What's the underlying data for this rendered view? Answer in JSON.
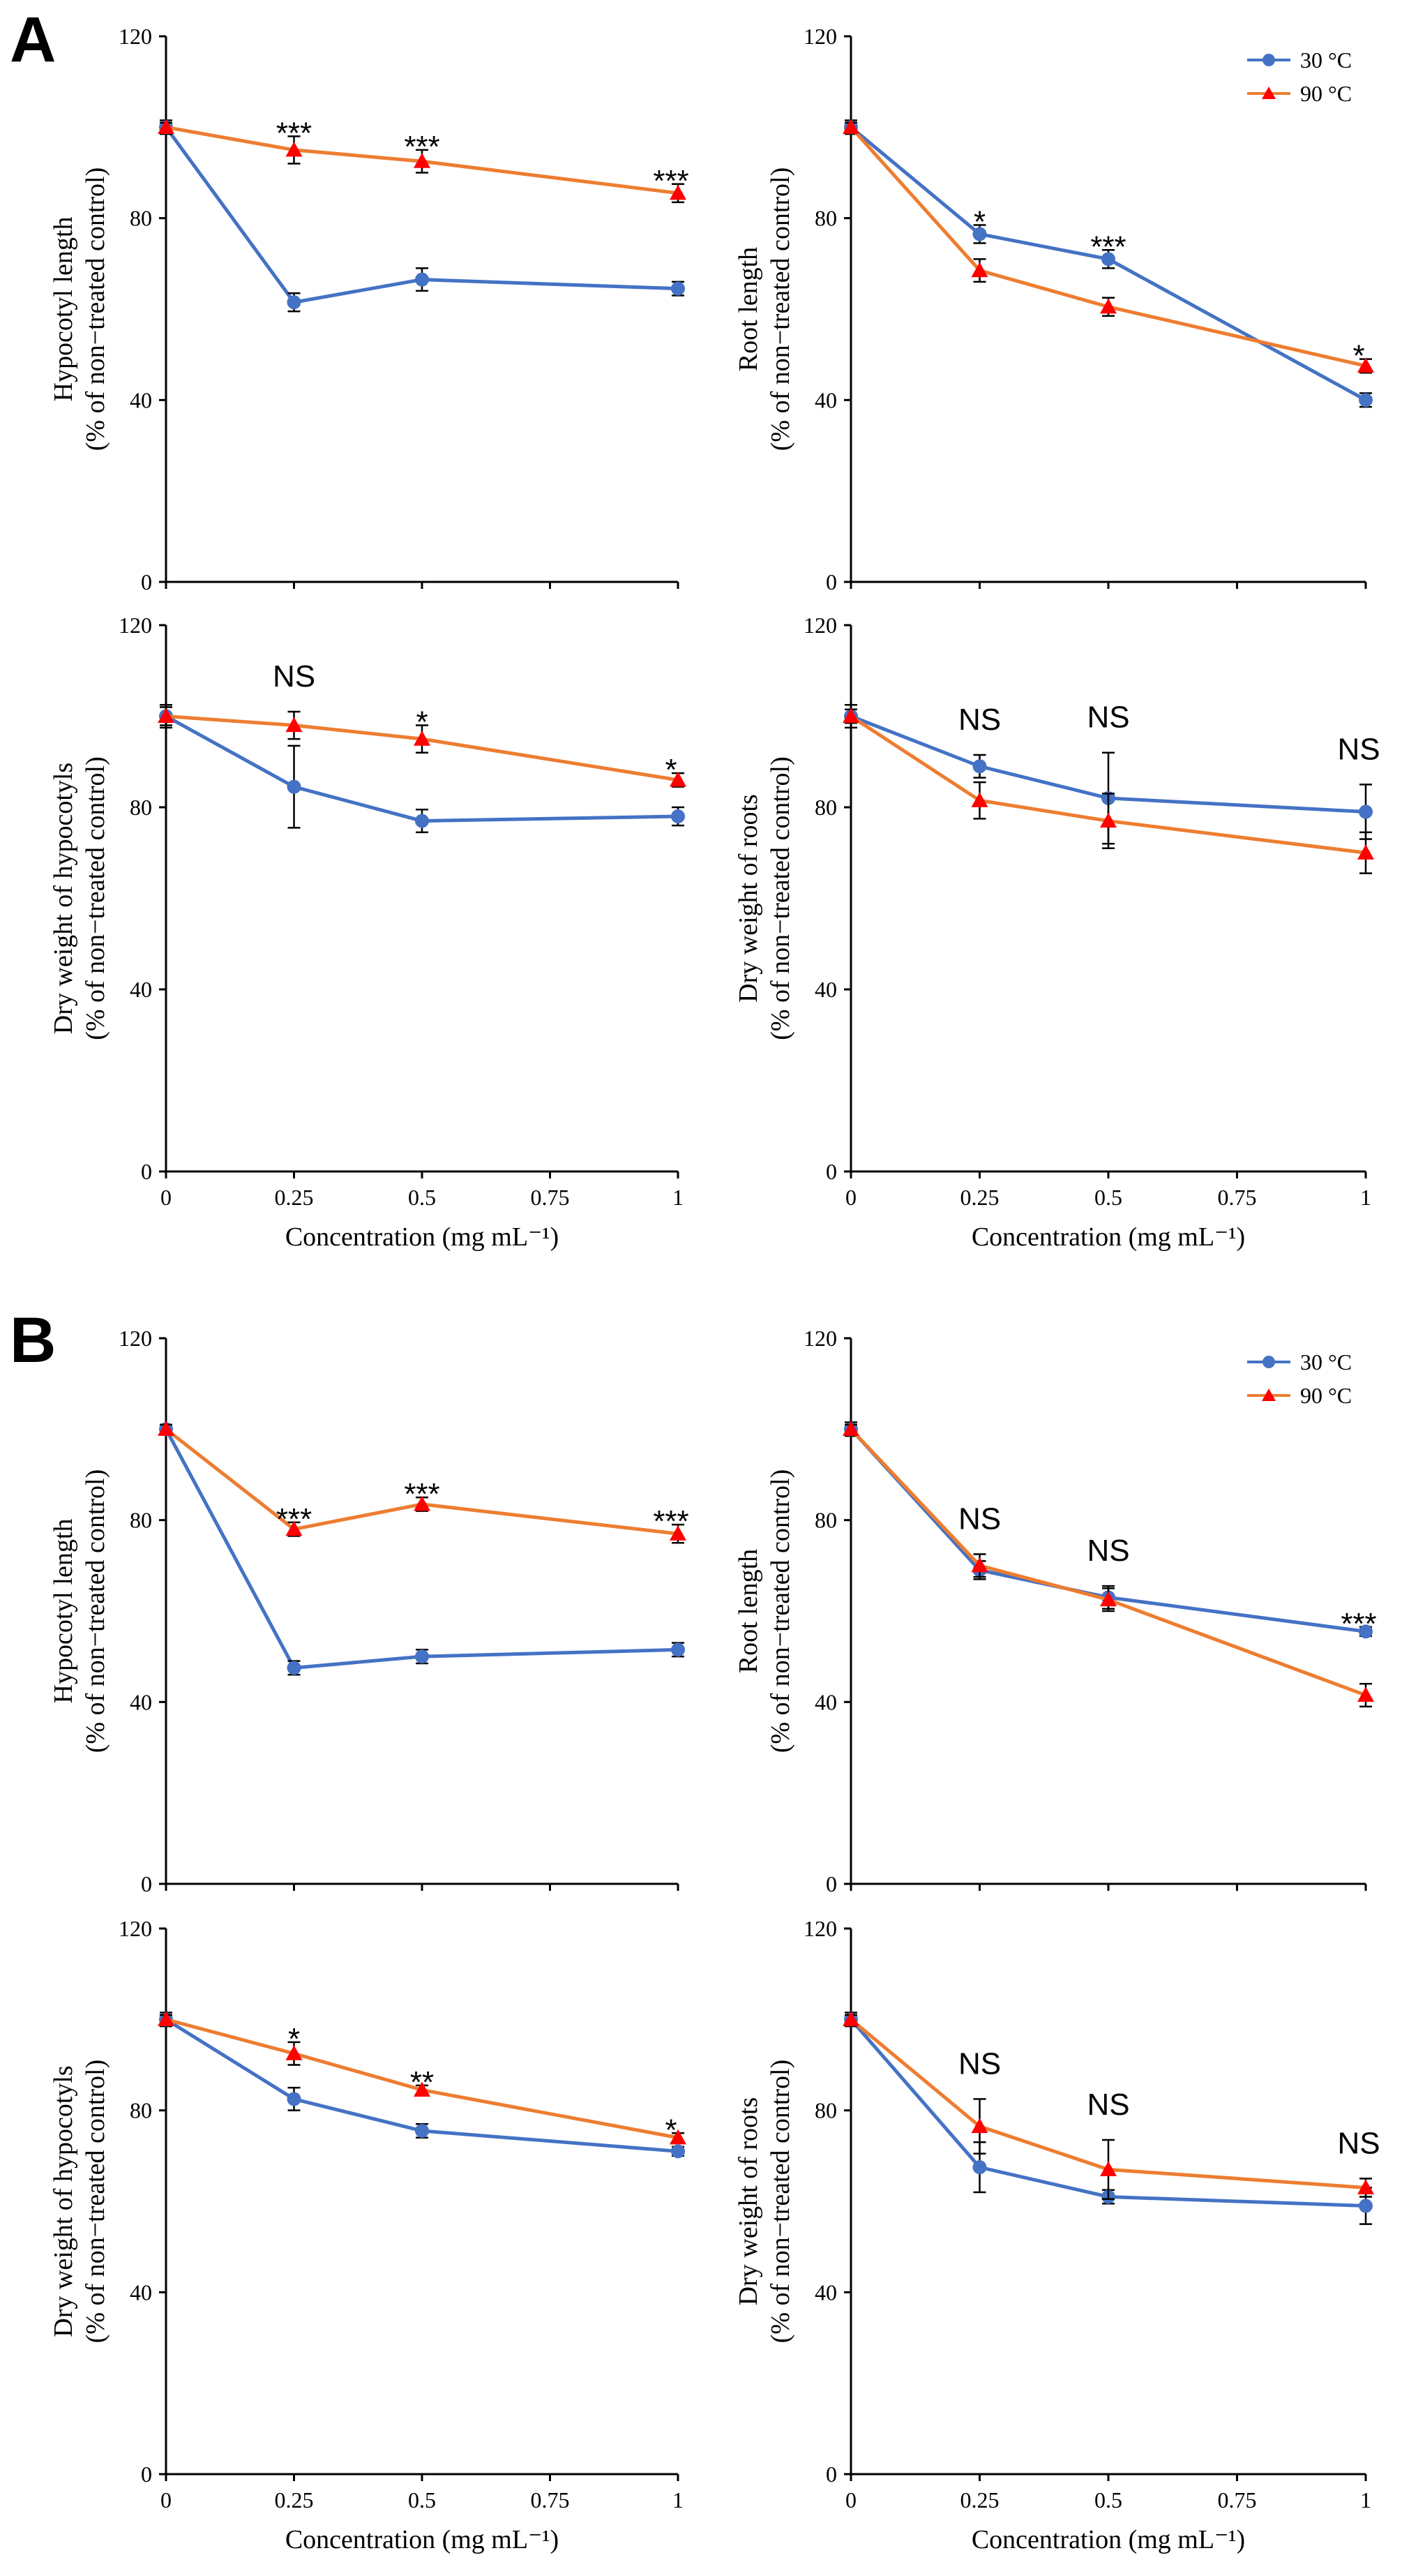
{
  "panel_letters": [
    "A",
    "B"
  ],
  "colors": {
    "c30": "#4472C4",
    "c90": "#ED7D31"
  },
  "chart_data": [
    {
      "type": "line",
      "panel": "A",
      "xlabel": "",
      "ylabel": "Hypocotyl length\n(% of non−treated control)",
      "x": [
        0,
        0.25,
        0.5,
        1
      ],
      "xticks": [],
      "yticks": [
        "0",
        "40",
        "80",
        "120"
      ],
      "ylim": [
        0,
        120
      ],
      "series": [
        {
          "name": "30 °C",
          "values": [
            100,
            61.5,
            66.5,
            64.5
          ],
          "err": [
            1.5,
            2.0,
            2.5,
            1.5
          ]
        },
        {
          "name": "90 °C",
          "values": [
            100,
            95,
            92.5,
            85.5
          ],
          "err": [
            1.0,
            3.0,
            2.5,
            2.0
          ]
        }
      ],
      "annotations": [
        "***",
        "***",
        "***"
      ],
      "legend": false
    },
    {
      "type": "line",
      "panel": "A",
      "xlabel": "",
      "ylabel": "Root length\n(% of non−treated control)",
      "x": [
        0,
        0.25,
        0.5,
        1
      ],
      "xticks": [],
      "yticks": [
        "0",
        "40",
        "80",
        "120"
      ],
      "ylim": [
        0,
        120
      ],
      "series": [
        {
          "name": "30 °C",
          "values": [
            100,
            76.5,
            71,
            40
          ],
          "err": [
            1.5,
            2.0,
            2.0,
            1.5
          ]
        },
        {
          "name": "90 °C",
          "values": [
            100,
            68.5,
            60.5,
            47.5
          ],
          "err": [
            1.0,
            2.5,
            2.0,
            1.5
          ]
        }
      ],
      "annotations": [
        "*",
        "***",
        "*"
      ],
      "legend": true
    },
    {
      "type": "line",
      "panel": "A",
      "xlabel": "Concentration (mg mL⁻¹)",
      "ylabel": "Dry weight of hypocotyls\n(% of non−treated control)",
      "x": [
        0,
        0.25,
        0.5,
        1
      ],
      "xticks": [
        "0",
        "0.25",
        "0.5",
        "0.75",
        "1"
      ],
      "yticks": [
        "0",
        "40",
        "80",
        "120"
      ],
      "ylim": [
        0,
        120
      ],
      "series": [
        {
          "name": "30 °C",
          "values": [
            100,
            84.5,
            77,
            78
          ],
          "err": [
            2.5,
            9.0,
            2.5,
            2.0
          ]
        },
        {
          "name": "90 °C",
          "values": [
            100,
            98,
            95,
            86
          ],
          "err": [
            2.0,
            3.0,
            3.0,
            1.5
          ]
        }
      ],
      "annotations": [
        "NS",
        "*",
        "*"
      ],
      "legend": false
    },
    {
      "type": "line",
      "panel": "A",
      "xlabel": "Concentration (mg mL⁻¹)",
      "ylabel": "Dry weight of roots\n(% of non−treated control)",
      "x": [
        0,
        0.25,
        0.5,
        1
      ],
      "xticks": [
        "0",
        "0.25",
        "0.5",
        "0.75",
        "1"
      ],
      "yticks": [
        "0",
        "40",
        "80",
        "120"
      ],
      "ylim": [
        0,
        120
      ],
      "series": [
        {
          "name": "30 °C",
          "values": [
            100,
            89,
            82,
            79
          ],
          "err": [
            2.5,
            2.5,
            10.0,
            6.0
          ]
        },
        {
          "name": "90 °C",
          "values": [
            100,
            81.5,
            77,
            70
          ],
          "err": [
            1.5,
            4.0,
            6.0,
            4.5
          ]
        }
      ],
      "annotations": [
        "NS",
        "NS",
        "NS"
      ],
      "legend": false
    },
    {
      "type": "line",
      "panel": "B",
      "xlabel": "",
      "ylabel": "Hypocotyl length\n(% of non−treated control)",
      "x": [
        0,
        0.25,
        0.5,
        1
      ],
      "xticks": [],
      "yticks": [
        "0",
        "40",
        "80",
        "120"
      ],
      "ylim": [
        0,
        120
      ],
      "series": [
        {
          "name": "30 °C",
          "values": [
            100,
            47.5,
            50,
            51.5
          ],
          "err": [
            1.0,
            1.5,
            1.5,
            1.5
          ]
        },
        {
          "name": "90 °C",
          "values": [
            100,
            78,
            83.5,
            77
          ],
          "err": [
            1.0,
            1.5,
            1.5,
            2.0
          ]
        }
      ],
      "annotations": [
        "***",
        "***",
        "***"
      ],
      "legend": false
    },
    {
      "type": "line",
      "panel": "B",
      "xlabel": "",
      "ylabel": "Root length\n(% of non−treated control)",
      "x": [
        0,
        0.25,
        0.5,
        1
      ],
      "xticks": [],
      "yticks": [
        "0",
        "40",
        "80",
        "120"
      ],
      "ylim": [
        0,
        120
      ],
      "series": [
        {
          "name": "30 °C",
          "values": [
            100,
            69,
            63,
            55.5
          ],
          "err": [
            1.5,
            2.0,
            2.5,
            1.0
          ]
        },
        {
          "name": "90 °C",
          "values": [
            100,
            70,
            62.5,
            41.5
          ],
          "err": [
            1.0,
            2.5,
            2.5,
            2.5
          ]
        }
      ],
      "annotations": [
        "NS",
        "NS",
        "***"
      ],
      "legend": true
    },
    {
      "type": "line",
      "panel": "B",
      "xlabel": "Concentration (mg mL⁻¹)",
      "ylabel": "Dry weight of hypocotyls\n(% of non−treated control)",
      "x": [
        0,
        0.25,
        0.5,
        1
      ],
      "xticks": [
        "0",
        "0.25",
        "0.5",
        "0.75",
        "1"
      ],
      "yticks": [
        "0",
        "40",
        "80",
        "120"
      ],
      "ylim": [
        0,
        120
      ],
      "series": [
        {
          "name": "30 °C",
          "values": [
            100,
            82.5,
            75.5,
            71
          ],
          "err": [
            1.5,
            2.5,
            1.5,
            1.0
          ]
        },
        {
          "name": "90 °C",
          "values": [
            100,
            92.5,
            84.5,
            74
          ],
          "err": [
            1.0,
            2.5,
            1.0,
            1.0
          ]
        }
      ],
      "annotations": [
        "*",
        "**",
        "*"
      ],
      "legend": false
    },
    {
      "type": "line",
      "panel": "B",
      "xlabel": "Concentration (mg mL⁻¹)",
      "ylabel": "Dry weight of roots\n(% of non−treated control)",
      "x": [
        0,
        0.25,
        0.5,
        1
      ],
      "xticks": [
        "0",
        "0.25",
        "0.5",
        "0.75",
        "1"
      ],
      "yticks": [
        "0",
        "40",
        "80",
        "120"
      ],
      "ylim": [
        0,
        120
      ],
      "series": [
        {
          "name": "30 °C",
          "values": [
            100,
            67.5,
            61,
            59
          ],
          "err": [
            1.5,
            5.5,
            1.5,
            4.0
          ]
        },
        {
          "name": "90 °C",
          "values": [
            100,
            76.5,
            67,
            63
          ],
          "err": [
            1.0,
            6.0,
            6.5,
            2.0
          ]
        }
      ],
      "annotations": [
        "NS",
        "NS",
        "NS"
      ],
      "legend": false
    }
  ]
}
